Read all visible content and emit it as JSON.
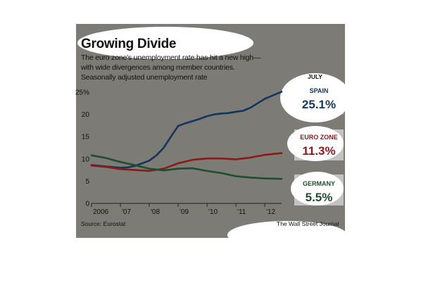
{
  "title": "Growing Divide",
  "subtitle": [
    "The euro zone's unemployment rate has hit a new high—",
    "with wide divergences among member countries.",
    "Seasonally adjusted unemployment rate"
  ],
  "latest_label": "JULY",
  "source": "Source: Eurostat",
  "credit": "The Wall Street Journal",
  "colors": {
    "background": "#7d7b75",
    "spain": "#14355c",
    "euro_zone": "#8a1a1a",
    "germany": "#1f4d31"
  },
  "chart_data": {
    "type": "line",
    "title": "Growing Divide",
    "ylabel": "Seasonally adjusted unemployment rate",
    "xlabel": "",
    "ylim": [
      0,
      25
    ],
    "yticks": [
      "25%",
      "20",
      "15",
      "10",
      "5",
      "0"
    ],
    "xlim": [
      2006.0,
      2012.583
    ],
    "xticks": [
      "2006",
      "'07",
      "'08",
      "'09",
      "'10",
      "'11",
      "'12"
    ],
    "grid": false,
    "series": [
      {
        "name": "SPAIN",
        "latest": "25.1%",
        "x": [
          2006.0,
          2006.5,
          2007.0,
          2007.25,
          2007.5,
          2007.75,
          2008.0,
          2008.25,
          2008.5,
          2008.75,
          2009.0,
          2009.25,
          2009.5,
          2009.75,
          2010.0,
          2010.25,
          2010.5,
          2010.75,
          2011.0,
          2011.25,
          2011.5,
          2011.75,
          2012.0,
          2012.25,
          2012.583
        ],
        "y": [
          8.6,
          8.3,
          8.0,
          8.1,
          8.4,
          9.0,
          9.6,
          10.8,
          12.5,
          15.0,
          17.4,
          18.0,
          18.5,
          19.0,
          19.6,
          20.0,
          20.2,
          20.3,
          20.6,
          20.8,
          21.5,
          22.5,
          23.5,
          24.2,
          25.1
        ]
      },
      {
        "name": "EURO ZONE",
        "latest": "11.3%",
        "x": [
          2006.0,
          2006.5,
          2007.0,
          2007.5,
          2008.0,
          2008.5,
          2009.0,
          2009.5,
          2010.0,
          2010.5,
          2011.0,
          2011.5,
          2012.0,
          2012.583
        ],
        "y": [
          8.5,
          8.2,
          7.7,
          7.5,
          7.3,
          7.8,
          9.0,
          9.8,
          10.1,
          10.1,
          9.9,
          10.3,
          10.9,
          11.3
        ]
      },
      {
        "name": "GERMANY",
        "latest": "5.5%",
        "x": [
          2006.0,
          2006.5,
          2007.0,
          2007.5,
          2008.0,
          2008.5,
          2009.0,
          2009.5,
          2010.0,
          2010.5,
          2011.0,
          2011.5,
          2012.0,
          2012.583
        ],
        "y": [
          10.8,
          10.2,
          9.3,
          8.6,
          7.8,
          7.4,
          7.8,
          7.9,
          7.3,
          6.8,
          6.1,
          5.8,
          5.6,
          5.5
        ]
      }
    ]
  }
}
